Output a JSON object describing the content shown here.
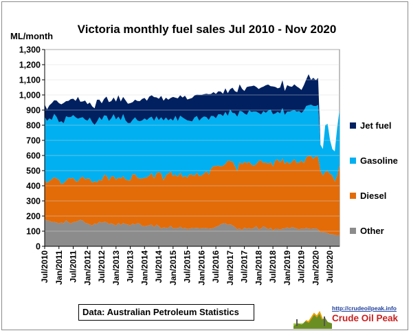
{
  "chart_data": {
    "type": "area",
    "stacked": true,
    "title": "Victoria monthly fuel sales Jul 2010 - Nov 2020",
    "ylabel": "ML/month",
    "ylim": [
      0,
      1300
    ],
    "ytick_step": 100,
    "yticks": [
      "0",
      "100",
      "200",
      "300",
      "400",
      "500",
      "600",
      "700",
      "800",
      "900",
      "1,000",
      "1,100",
      "1,200",
      "1,300"
    ],
    "start": "Jul 2010",
    "end": "Nov 2020",
    "n_months": 125,
    "xticks": [
      "Jul/2010",
      "Jan/2011",
      "Jul/2011",
      "Jan/2012",
      "Jul/2012",
      "Jan/2013",
      "Jul/2013",
      "Jan/2014",
      "Jul/2014",
      "Jan/2015",
      "Jul/2015",
      "Jan/2016",
      "Jul/2016",
      "Jan/2017",
      "Jul/2017",
      "Jan/2018",
      "Jul/2018",
      "Jan/2019",
      "Jul/2019",
      "Jan/2020",
      "Jul/2020"
    ],
    "legend_position": "right",
    "legend": [
      "Jet fuel",
      "Gasoline",
      "Diesel",
      "Other"
    ],
    "series": [
      {
        "name": "Other",
        "color": "#8c8c8c",
        "values": [
          178,
          170,
          168,
          160,
          162,
          156,
          152,
          157,
          153,
          172,
          158,
          151,
          159,
          162,
          167,
          175,
          170,
          155,
          151,
          143,
          137,
          151,
          147,
          162,
          155,
          161,
          159,
          147,
          152,
          145,
          136,
          155,
          140,
          154,
          147,
          143,
          138,
          150,
          143,
          153,
          149,
          134,
          132,
          136,
          139,
          144,
          125,
          143,
          134,
          117,
          125,
          122,
          123,
          135,
          118,
          121,
          119,
          130,
          117,
          122,
          114,
          117,
          121,
          120,
          123,
          118,
          119,
          121,
          119,
          118,
          117,
          121,
          129,
          134,
          145,
          151,
          153,
          141,
          146,
          138,
          127,
          112,
          118,
          107,
          124,
          116,
          120,
          114,
          121,
          133,
          112,
          117,
          132,
          124,
          112,
          122,
          105,
          116,
          116,
          109,
          117,
          118,
          125,
          117,
          128,
          122,
          117,
          111,
          118,
          114,
          122,
          115,
          116,
          117,
          119,
          111,
          92,
          95,
          92,
          87,
          80,
          80,
          75,
          72,
          74
        ]
      },
      {
        "name": "Diesel",
        "color": "#e36c09",
        "values": [
          262,
          248,
          265,
          282,
          296,
          292,
          289,
          254,
          266,
          262,
          293,
          297,
          294,
          269,
          262,
          277,
          291,
          288,
          296,
          303,
          283,
          280,
          276,
          279,
          278,
          312,
          309,
          288,
          308,
          319,
          303,
          300,
          309,
          309,
          295,
          293,
          298,
          326,
          333,
          301,
          297,
          315,
          321,
          320,
          328,
          341,
          323,
          339,
          357,
          364,
          311,
          348,
          357,
          360,
          346,
          353,
          340,
          358,
          340,
          343,
          341,
          361,
          351,
          347,
          364,
          346,
          350,
          359,
          379,
          355,
          397,
          409,
          401,
          400,
          382,
          382,
          390,
          426,
          417,
          423,
          405,
          385,
          440,
          435,
          435,
          433,
          439,
          425,
          412,
          410,
          452,
          451,
          418,
          431,
          433,
          436,
          424,
          452,
          459,
          444,
          464,
          427,
          435,
          428,
          431,
          455,
          433,
          442,
          451,
          435,
          466,
          482,
          480,
          460,
          476,
          480,
          406,
          373,
          400,
          412,
          398,
          389,
          353,
          395,
          468
        ]
      },
      {
        "name": "Gasoline",
        "color": "#00b0f0",
        "values": [
          415,
          411,
          412,
          394,
          417,
          407,
          379,
          415,
          394,
          425,
          402,
          406,
          414,
          421,
          414,
          397,
          392,
          394,
          383,
          404,
          400,
          371,
          401,
          413,
          401,
          392,
          395,
          393,
          385,
          409,
          399,
          402,
          384,
          411,
          390,
          378,
          378,
          359,
          376,
          377,
          380,
          383,
          392,
          378,
          382,
          371,
          381,
          377,
          343,
          371,
          395,
          381,
          352,
          349,
          366,
          388,
          369,
          375,
          394,
          376,
          377,
          351,
          353,
          384,
          374,
          366,
          378,
          378,
          356,
          362,
          348,
          330,
          316,
          338,
          346,
          327,
          345,
          295,
          341,
          320,
          347,
          359,
          337,
          349,
          318,
          319,
          339,
          349,
          358,
          347,
          317,
          303,
          343,
          327,
          351,
          345,
          344,
          309,
          314,
          324,
          333,
          323,
          330,
          345,
          337,
          323,
          340,
          341,
          311,
          348,
          339,
          335,
          340,
          351,
          331,
          343,
          173,
          175,
          309,
          310,
          224,
          173,
          199,
          314,
          358
        ]
      },
      {
        "name": "Jet fuel",
        "color": "#002060",
        "values": [
          82,
          75,
          87,
          110,
          90,
          108,
          126,
          112,
          134,
          100,
          108,
          119,
          108,
          109,
          144,
          106,
          104,
          126,
          109,
          100,
          104,
          110,
          144,
          115,
          111,
          109,
          126,
          125,
          114,
          110,
          118,
          141,
          124,
          113,
          133,
          128,
          132,
          117,
          117,
          129,
          133,
          142,
          135,
          128,
          140,
          142,
          157,
          125,
          141,
          142,
          131,
          131,
          137,
          136,
          157,
          120,
          150,
          135,
          132,
          154,
          138,
          146,
          155,
          145,
          141,
          171,
          154,
          147,
          154,
          170,
          145,
          159,
          161,
          152,
          150,
          148,
          156,
          150,
          134,
          167,
          146,
          162,
          175,
          150,
          149,
          184,
          158,
          170,
          171,
          163,
          158,
          178,
          162,
          182,
          173,
          155,
          183,
          176,
          155,
          172,
          183,
          158,
          175,
          167,
          158,
          170,
          166,
          152,
          153,
          167,
          175,
          205,
          164,
          185,
          172,
          178,
          0,
          0,
          0,
          0,
          0,
          0,
          0,
          0,
          0
        ]
      }
    ]
  },
  "source_note": "Data: Australian Petroleum Statistics",
  "logo": {
    "url": "http://crudeoilpeak.info",
    "name": "Crude Oil Peak"
  }
}
